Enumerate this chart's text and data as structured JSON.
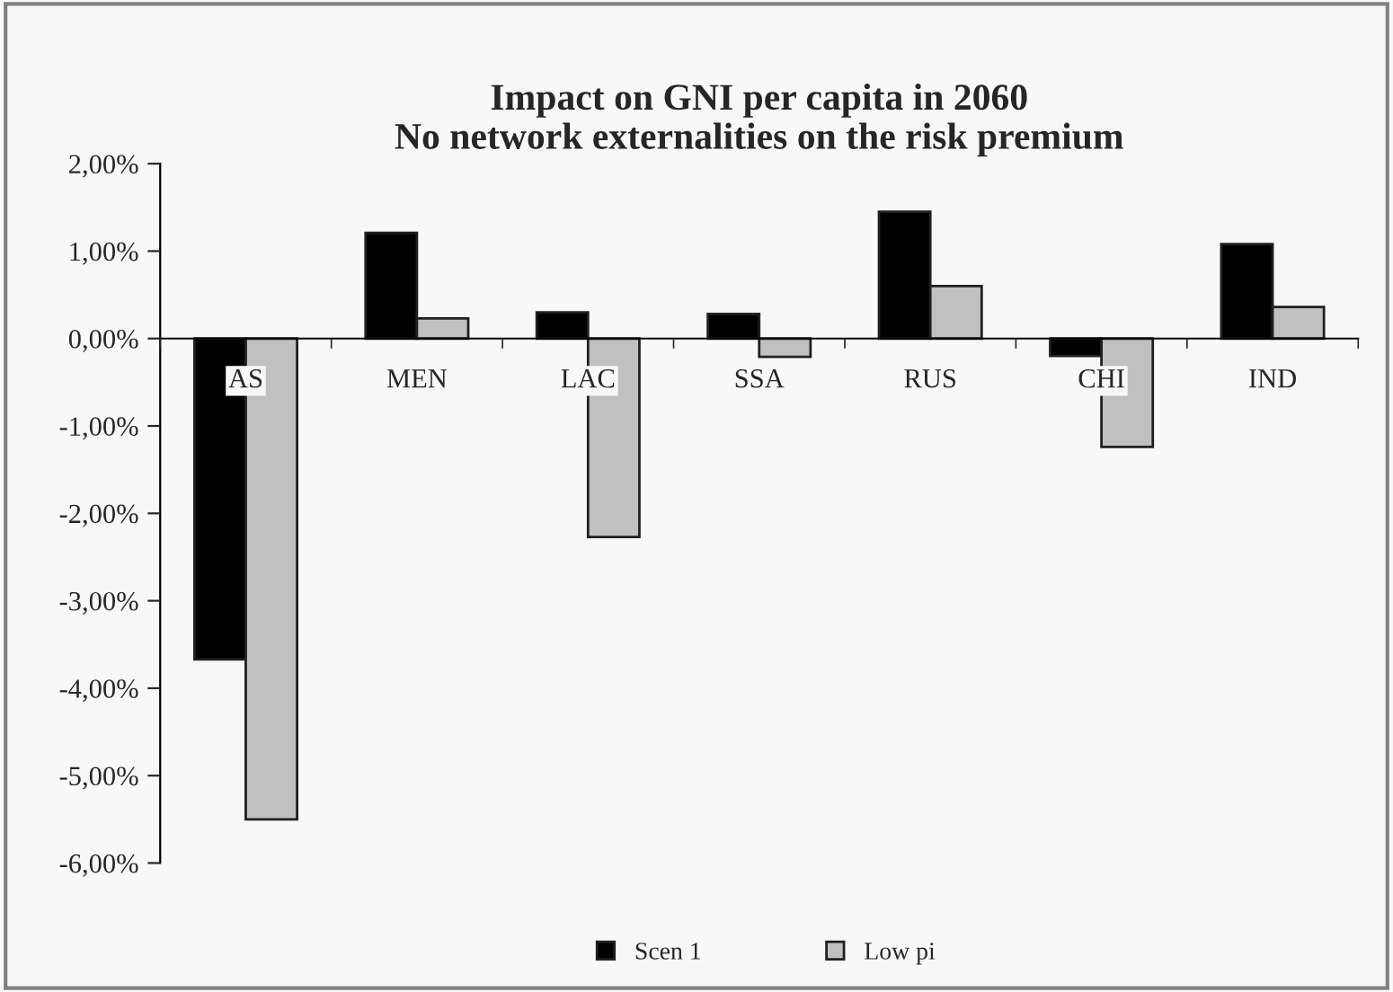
{
  "chart_data": {
    "type": "bar",
    "title": "Impact on GNI per capita in 2060\nNo network externalities on the risk premium",
    "categories": [
      "AS",
      "MEN",
      "LAC",
      "SSA",
      "RUS",
      "CHI",
      "IND"
    ],
    "series": [
      {
        "name": "Scen 1",
        "color": "#000000",
        "values": [
          -3.67,
          1.21,
          0.3,
          0.28,
          1.45,
          -0.2,
          1.08
        ]
      },
      {
        "name": "Low pi",
        "color": "#c0c0c0",
        "values": [
          -5.5,
          0.23,
          -2.27,
          -0.21,
          0.6,
          -1.24,
          0.36
        ]
      }
    ],
    "ylim": [
      -6,
      2
    ],
    "yticks": [
      {
        "value": -6,
        "label": "-6,00%"
      },
      {
        "value": -5,
        "label": "-5,00%"
      },
      {
        "value": -4,
        "label": "-4,00%"
      },
      {
        "value": -3,
        "label": "-3,00%"
      },
      {
        "value": -2,
        "label": "-2,00%"
      },
      {
        "value": -1,
        "label": "-1,00%"
      },
      {
        "value": 0,
        "label": "0,00%"
      },
      {
        "value": 1,
        "label": "1,00%"
      },
      {
        "value": 2,
        "label": "2,00%"
      }
    ],
    "grid": false,
    "legend": "bottom"
  }
}
